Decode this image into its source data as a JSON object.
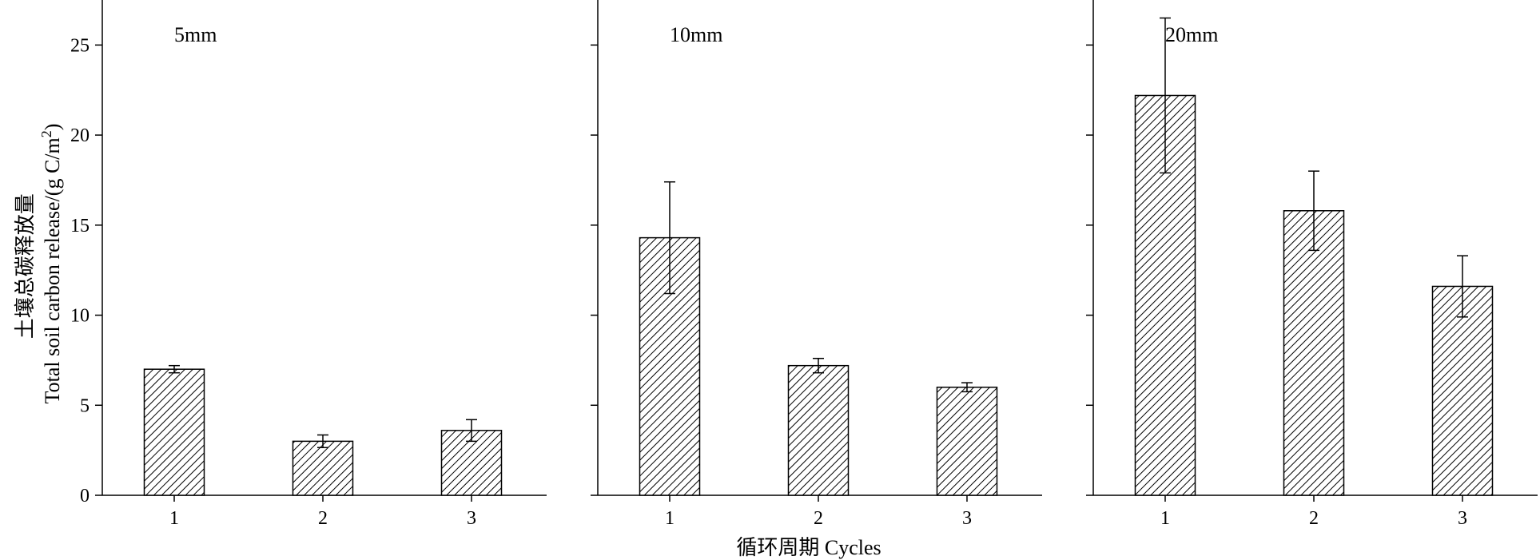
{
  "chart_data": {
    "type": "bar",
    "ylabel_cn": "土壤总碳释放量",
    "ylabel_en": "Total soil carbon release/(g C/m",
    "ylabel_sup": "2",
    "ylabel_close": ")",
    "xlabel": "循环周期 Cycles",
    "ylim": [
      0,
      27.5
    ],
    "yticks": [
      0,
      5,
      10,
      15,
      20,
      25
    ],
    "categories": [
      "1",
      "2",
      "3"
    ],
    "panels": [
      {
        "label": "5mm",
        "values": [
          7.0,
          3.0,
          3.6
        ],
        "errors": [
          0.2,
          0.35,
          0.6
        ]
      },
      {
        "label": "10mm",
        "values": [
          14.3,
          7.2,
          6.0
        ],
        "errors": [
          3.1,
          0.4,
          0.25
        ]
      },
      {
        "label": "20mm",
        "values": [
          22.2,
          15.8,
          11.6
        ],
        "errors": [
          4.3,
          2.2,
          1.7
        ]
      }
    ],
    "bar_fill": "hatched",
    "grid": false,
    "legend": "none"
  }
}
